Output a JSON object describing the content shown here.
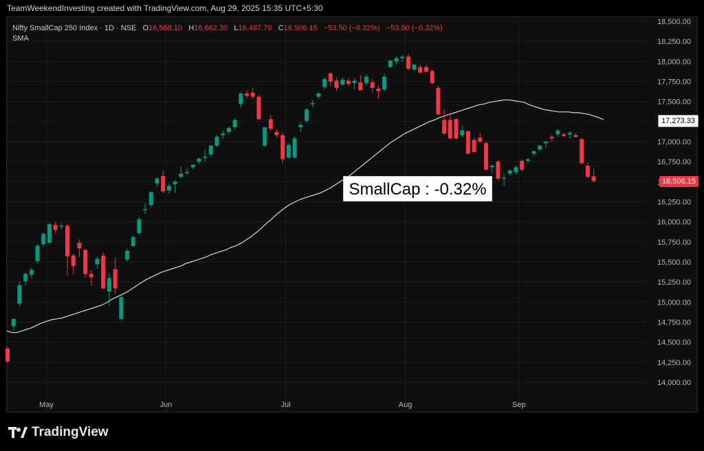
{
  "header": {
    "attribution": "TeamWeekendInvesting created with TradingView.com, Aug 29, 2025 15:35 UTC+5:30"
  },
  "legend": {
    "symbol": "Nifty SmallCap 250 Index · 1D · NSE",
    "o_label": "O",
    "o_value": "16,568.10",
    "h_label": "H",
    "h_value": "16,662.30",
    "l_label": "L",
    "l_value": "16,487.70",
    "c_label": "C",
    "c_value": "16,506.15",
    "change": "−53.50 (−0.32%)",
    "change2": "−53.50 (−0.32%)",
    "indicator": "SMA"
  },
  "annotation": {
    "text": "SmallCap : -0.32%"
  },
  "price_tags": {
    "sma": "17,273.33",
    "last": "16,506.15"
  },
  "logo": {
    "text": "TradingView"
  },
  "colors": {
    "up": "#089981",
    "down": "#f23645",
    "sma": "#d9d9d9",
    "background": "#0f0f0f",
    "grid": "#1c1c1c"
  },
  "chart_data": {
    "type": "candlestick",
    "ylim": [
      13850,
      18550
    ],
    "y_ticks": [
      "18,500.00",
      "18,250.00",
      "18,000.00",
      "17,750.00",
      "17,500.00",
      "17,250.00",
      "17,000.00",
      "16,750.00",
      "16,500.00",
      "16,250.00",
      "16,000.00",
      "15,750.00",
      "15,500.00",
      "15,250.00",
      "15,000.00",
      "14,750.00",
      "14,500.00",
      "14,250.00",
      "14,000.00"
    ],
    "y_tick_values": [
      18500,
      18250,
      18000,
      17750,
      17500,
      17250,
      17000,
      16750,
      16500,
      16250,
      16000,
      15750,
      15500,
      15250,
      15000,
      14750,
      14500,
      14250,
      14000
    ],
    "x_labels": [
      "May",
      "Jun",
      "Jul",
      "Aug",
      "Sep"
    ],
    "x_label_positions": [
      6.5,
      26.5,
      46.5,
      66.5,
      85.5
    ],
    "candles": [
      {
        "o": 14420,
        "h": 14450,
        "l": 14240,
        "c": 14260
      },
      {
        "o": 14700,
        "h": 14800,
        "l": 14640,
        "c": 14790
      },
      {
        "o": 14980,
        "h": 15250,
        "l": 14950,
        "c": 15210
      },
      {
        "o": 15260,
        "h": 15370,
        "l": 15200,
        "c": 15350
      },
      {
        "o": 15340,
        "h": 15430,
        "l": 15300,
        "c": 15400
      },
      {
        "o": 15510,
        "h": 15720,
        "l": 15480,
        "c": 15700
      },
      {
        "o": 15720,
        "h": 15870,
        "l": 15690,
        "c": 15850
      },
      {
        "o": 15740,
        "h": 15990,
        "l": 15720,
        "c": 15970
      },
      {
        "o": 15960,
        "h": 16000,
        "l": 15860,
        "c": 15900
      },
      {
        "o": 15940,
        "h": 15990,
        "l": 15900,
        "c": 15950
      },
      {
        "o": 15950,
        "h": 15970,
        "l": 15330,
        "c": 15570
      },
      {
        "o": 15580,
        "h": 15600,
        "l": 15350,
        "c": 15450
      },
      {
        "o": 15740,
        "h": 15780,
        "l": 15560,
        "c": 15670
      },
      {
        "o": 15650,
        "h": 15670,
        "l": 15300,
        "c": 15350
      },
      {
        "o": 15350,
        "h": 15400,
        "l": 15200,
        "c": 15310
      },
      {
        "o": 15470,
        "h": 15570,
        "l": 15420,
        "c": 15540
      },
      {
        "o": 15580,
        "h": 15620,
        "l": 15160,
        "c": 15170
      },
      {
        "o": 15130,
        "h": 15360,
        "l": 14950,
        "c": 15300
      },
      {
        "o": 15410,
        "h": 15560,
        "l": 15100,
        "c": 15170
      },
      {
        "o": 14790,
        "h": 15090,
        "l": 14770,
        "c": 15060
      },
      {
        "o": 15530,
        "h": 15660,
        "l": 15500,
        "c": 15640
      },
      {
        "o": 15700,
        "h": 15830,
        "l": 15680,
        "c": 15810
      },
      {
        "o": 15860,
        "h": 16060,
        "l": 15840,
        "c": 16030
      },
      {
        "o": 16150,
        "h": 16230,
        "l": 16100,
        "c": 16160
      },
      {
        "o": 16210,
        "h": 16380,
        "l": 16180,
        "c": 16370
      },
      {
        "o": 16480,
        "h": 16560,
        "l": 16440,
        "c": 16540
      },
      {
        "o": 16570,
        "h": 16640,
        "l": 16360,
        "c": 16380
      },
      {
        "o": 16390,
        "h": 16480,
        "l": 16350,
        "c": 16450
      },
      {
        "o": 16470,
        "h": 16520,
        "l": 16360,
        "c": 16500
      },
      {
        "o": 16560,
        "h": 16690,
        "l": 16540,
        "c": 16600
      },
      {
        "o": 16610,
        "h": 16670,
        "l": 16590,
        "c": 16620
      },
      {
        "o": 16680,
        "h": 16720,
        "l": 16660,
        "c": 16710
      },
      {
        "o": 16750,
        "h": 16800,
        "l": 16720,
        "c": 16790
      },
      {
        "o": 16800,
        "h": 16900,
        "l": 16750,
        "c": 16810
      },
      {
        "o": 16840,
        "h": 16960,
        "l": 16800,
        "c": 16950
      },
      {
        "o": 16950,
        "h": 17080,
        "l": 16930,
        "c": 17060
      },
      {
        "o": 17080,
        "h": 17140,
        "l": 17030,
        "c": 17100
      },
      {
        "o": 17120,
        "h": 17190,
        "l": 17090,
        "c": 17170
      },
      {
        "o": 17180,
        "h": 17300,
        "l": 17150,
        "c": 17270
      },
      {
        "o": 17470,
        "h": 17620,
        "l": 17420,
        "c": 17600
      },
      {
        "o": 17600,
        "h": 17640,
        "l": 17540,
        "c": 17570
      },
      {
        "o": 17610,
        "h": 17670,
        "l": 17530,
        "c": 17560
      },
      {
        "o": 17560,
        "h": 17580,
        "l": 17270,
        "c": 17280
      },
      {
        "o": 16950,
        "h": 17180,
        "l": 16930,
        "c": 17180
      },
      {
        "o": 17280,
        "h": 17330,
        "l": 17130,
        "c": 17160
      },
      {
        "o": 17120,
        "h": 17150,
        "l": 17050,
        "c": 17080
      },
      {
        "o": 17080,
        "h": 17110,
        "l": 16730,
        "c": 16780
      },
      {
        "o": 16800,
        "h": 16980,
        "l": 16790,
        "c": 16960
      },
      {
        "o": 16800,
        "h": 17070,
        "l": 16790,
        "c": 17040
      },
      {
        "o": 17180,
        "h": 17240,
        "l": 17120,
        "c": 17210
      },
      {
        "o": 17260,
        "h": 17420,
        "l": 17230,
        "c": 17400
      },
      {
        "o": 17470,
        "h": 17520,
        "l": 17430,
        "c": 17480
      },
      {
        "o": 17560,
        "h": 17620,
        "l": 17530,
        "c": 17600
      },
      {
        "o": 17680,
        "h": 17800,
        "l": 17660,
        "c": 17780
      },
      {
        "o": 17850,
        "h": 17870,
        "l": 17690,
        "c": 17750
      },
      {
        "o": 17760,
        "h": 17800,
        "l": 17630,
        "c": 17670
      },
      {
        "o": 17710,
        "h": 17800,
        "l": 17690,
        "c": 17770
      },
      {
        "o": 17760,
        "h": 17790,
        "l": 17690,
        "c": 17720
      },
      {
        "o": 17730,
        "h": 17790,
        "l": 17650,
        "c": 17760
      },
      {
        "o": 17740,
        "h": 17830,
        "l": 17640,
        "c": 17640
      },
      {
        "o": 17730,
        "h": 17840,
        "l": 17700,
        "c": 17810
      },
      {
        "o": 17740,
        "h": 17780,
        "l": 17610,
        "c": 17670
      },
      {
        "o": 17660,
        "h": 17700,
        "l": 17540,
        "c": 17630
      },
      {
        "o": 17650,
        "h": 17850,
        "l": 17630,
        "c": 17810
      },
      {
        "o": 17930,
        "h": 18020,
        "l": 17920,
        "c": 18010
      },
      {
        "o": 18000,
        "h": 18060,
        "l": 17960,
        "c": 18040
      },
      {
        "o": 18040,
        "h": 18080,
        "l": 17990,
        "c": 18060
      },
      {
        "o": 18060,
        "h": 18090,
        "l": 17890,
        "c": 17910
      },
      {
        "o": 17900,
        "h": 17970,
        "l": 17880,
        "c": 17960
      },
      {
        "o": 17930,
        "h": 17960,
        "l": 17850,
        "c": 17860
      },
      {
        "o": 17930,
        "h": 17960,
        "l": 17870,
        "c": 17870
      },
      {
        "o": 17880,
        "h": 17900,
        "l": 17710,
        "c": 17730
      },
      {
        "o": 17670,
        "h": 17700,
        "l": 17330,
        "c": 17340
      },
      {
        "o": 17270,
        "h": 17400,
        "l": 17080,
        "c": 17100
      },
      {
        "o": 17270,
        "h": 17360,
        "l": 17030,
        "c": 17040
      },
      {
        "o": 17280,
        "h": 17300,
        "l": 17020,
        "c": 17040
      },
      {
        "o": 17080,
        "h": 17200,
        "l": 17050,
        "c": 17140
      },
      {
        "o": 17130,
        "h": 17140,
        "l": 16840,
        "c": 16850
      },
      {
        "o": 17020,
        "h": 17050,
        "l": 16860,
        "c": 16870
      },
      {
        "o": 17050,
        "h": 17100,
        "l": 16980,
        "c": 17000
      },
      {
        "o": 16980,
        "h": 17000,
        "l": 16640,
        "c": 16650
      },
      {
        "o": 16680,
        "h": 16720,
        "l": 16600,
        "c": 16700
      },
      {
        "o": 16750,
        "h": 16770,
        "l": 16520,
        "c": 16540
      },
      {
        "o": 16540,
        "h": 16600,
        "l": 16450,
        "c": 16550
      },
      {
        "o": 16600,
        "h": 16660,
        "l": 16570,
        "c": 16640
      },
      {
        "o": 16620,
        "h": 16700,
        "l": 16590,
        "c": 16680
      },
      {
        "o": 16760,
        "h": 16780,
        "l": 16630,
        "c": 16650
      },
      {
        "o": 16760,
        "h": 16800,
        "l": 16730,
        "c": 16780
      },
      {
        "o": 16850,
        "h": 16890,
        "l": 16820,
        "c": 16880
      },
      {
        "o": 16900,
        "h": 16960,
        "l": 16880,
        "c": 16950
      },
      {
        "o": 16980,
        "h": 17010,
        "l": 16920,
        "c": 17000
      },
      {
        "o": 17060,
        "h": 17080,
        "l": 17000,
        "c": 17040
      },
      {
        "o": 17090,
        "h": 17160,
        "l": 17060,
        "c": 17140
      },
      {
        "o": 17090,
        "h": 17110,
        "l": 17060,
        "c": 17070
      },
      {
        "o": 17090,
        "h": 17130,
        "l": 17040,
        "c": 17110
      },
      {
        "o": 17080,
        "h": 17110,
        "l": 17050,
        "c": 17060
      },
      {
        "o": 17030,
        "h": 17050,
        "l": 16720,
        "c": 16730
      },
      {
        "o": 16700,
        "h": 16740,
        "l": 16550,
        "c": 16560
      },
      {
        "o": 16568.1,
        "h": 16662.3,
        "l": 16487.7,
        "c": 16506.15
      }
    ],
    "sma": [
      14640,
      14620,
      14620,
      14640,
      14660,
      14680,
      14710,
      14740,
      14760,
      14780,
      14790,
      14800,
      14820,
      14840,
      14860,
      14880,
      14900,
      14920,
      14940,
      14960,
      14990,
      15030,
      15060,
      15090,
      15120,
      15160,
      15200,
      15240,
      15280,
      15310,
      15340,
      15370,
      15390,
      15410,
      15430,
      15450,
      15480,
      15500,
      15520,
      15540,
      15560,
      15590,
      15610,
      15630,
      15650,
      15680,
      15700,
      15730,
      15770,
      15810,
      15860,
      15910,
      15970,
      16020,
      16080,
      16130,
      16180,
      16220,
      16250,
      16280,
      16300,
      16320,
      16340,
      16360,
      16390,
      16420,
      16460,
      16500,
      16540,
      16580,
      16630,
      16680,
      16730,
      16780,
      16830,
      16880,
      16930,
      16980,
      17020,
      17060,
      17100,
      17130,
      17160,
      17190,
      17220,
      17250,
      17270,
      17300,
      17320,
      17340,
      17360,
      17380,
      17400,
      17420,
      17440,
      17460,
      17470,
      17490,
      17500,
      17510,
      17520,
      17520,
      17510,
      17500,
      17490,
      17460,
      17440,
      17420,
      17400,
      17390,
      17380,
      17370,
      17370,
      17370,
      17360,
      17360,
      17350,
      17340,
      17320,
      17300,
      17273.33
    ]
  }
}
